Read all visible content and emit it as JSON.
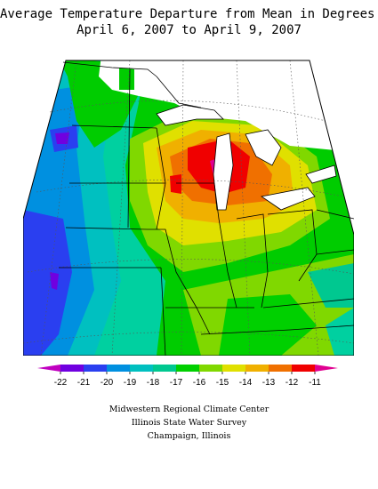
{
  "title": {
    "line1": "Average Temperature Departure from Mean in Degrees F",
    "line2": "April 6, 2007 to April 9, 2007"
  },
  "legend": {
    "labels": [
      "-22",
      "-21",
      "-20",
      "-19",
      "-18",
      "-17",
      "-16",
      "-15",
      "-14",
      "-13",
      "-12",
      "-11"
    ],
    "colors": [
      "#c000c0",
      "#7000e0",
      "#2a3ff0",
      "#0090e0",
      "#00c0c0",
      "#00c890",
      "#00d000",
      "#80d800",
      "#e0e000",
      "#f0b000",
      "#f07000",
      "#f00000",
      "#e00090"
    ]
  },
  "credits": {
    "line1": "Midwestern Regional Climate Center",
    "line2": "Illinois State Water Survey",
    "line3": "Champaign, Illinois"
  }
}
